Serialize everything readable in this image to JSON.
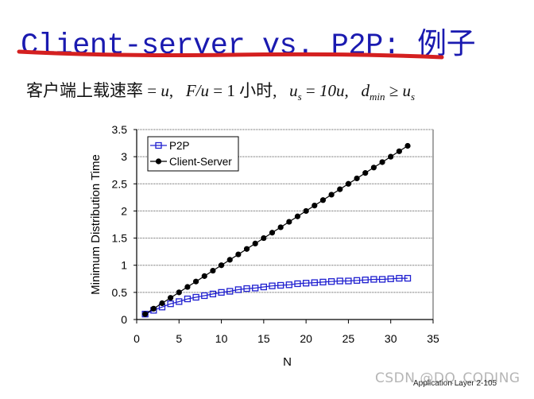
{
  "slide": {
    "title": "Client-server vs. P2P: 例子",
    "underline_color": "#d42020",
    "title_color": "#1a1ab0",
    "formula": {
      "upload_rate_label": "客户端上载速率",
      "eq1": " = ",
      "u": "u",
      "comma1": ",   ",
      "F_over_u": "F/u",
      "eq2": " = 1 ",
      "hour": "小时",
      "comma2": ",   ",
      "us": "u",
      "us_sub": "s",
      "eq3": " = ",
      "ten_u": "10u",
      "comma3": ",   ",
      "d": "d",
      "d_sub": "min",
      "geq": " ≥ ",
      "us2": "u",
      "us2_sub": "s"
    },
    "footer": "Application Layer   2-105",
    "watermark": "CSDN @DQ_CODING"
  },
  "chart_data": {
    "type": "line",
    "title": "",
    "xlabel": "N",
    "ylabel": "Minimum Distribution Time",
    "xlim": [
      0,
      35
    ],
    "ylim": [
      0,
      3.5
    ],
    "xticks": [
      "0",
      "5",
      "10",
      "15",
      "20",
      "25",
      "30",
      "35"
    ],
    "yticks": [
      "0",
      "0.5",
      "1",
      "1.5",
      "2",
      "2.5",
      "3",
      "3.5"
    ],
    "grid": "horizontal-dotted",
    "legend_position": "upper-left",
    "x": [
      1,
      2,
      3,
      4,
      5,
      6,
      7,
      8,
      9,
      10,
      11,
      12,
      13,
      14,
      15,
      16,
      17,
      18,
      19,
      20,
      21,
      22,
      23,
      24,
      25,
      26,
      27,
      28,
      29,
      30,
      31,
      32
    ],
    "series": [
      {
        "name": "P2P",
        "color": "#2020d0",
        "marker": "square-open",
        "values": [
          0.1,
          0.17,
          0.23,
          0.29,
          0.33,
          0.38,
          0.41,
          0.44,
          0.47,
          0.5,
          0.52,
          0.55,
          0.57,
          0.58,
          0.6,
          0.62,
          0.63,
          0.64,
          0.66,
          0.67,
          0.68,
          0.69,
          0.7,
          0.71,
          0.71,
          0.72,
          0.73,
          0.74,
          0.74,
          0.75,
          0.76,
          0.76
        ]
      },
      {
        "name": "Client-Server",
        "color": "#000000",
        "marker": "circle-filled",
        "values": [
          0.1,
          0.2,
          0.3,
          0.4,
          0.5,
          0.6,
          0.7,
          0.8,
          0.9,
          1.0,
          1.1,
          1.2,
          1.3,
          1.4,
          1.5,
          1.6,
          1.7,
          1.8,
          1.9,
          2.0,
          2.1,
          2.2,
          2.3,
          2.4,
          2.5,
          2.6,
          2.7,
          2.8,
          2.9,
          3.0,
          3.1,
          3.2
        ]
      }
    ]
  }
}
